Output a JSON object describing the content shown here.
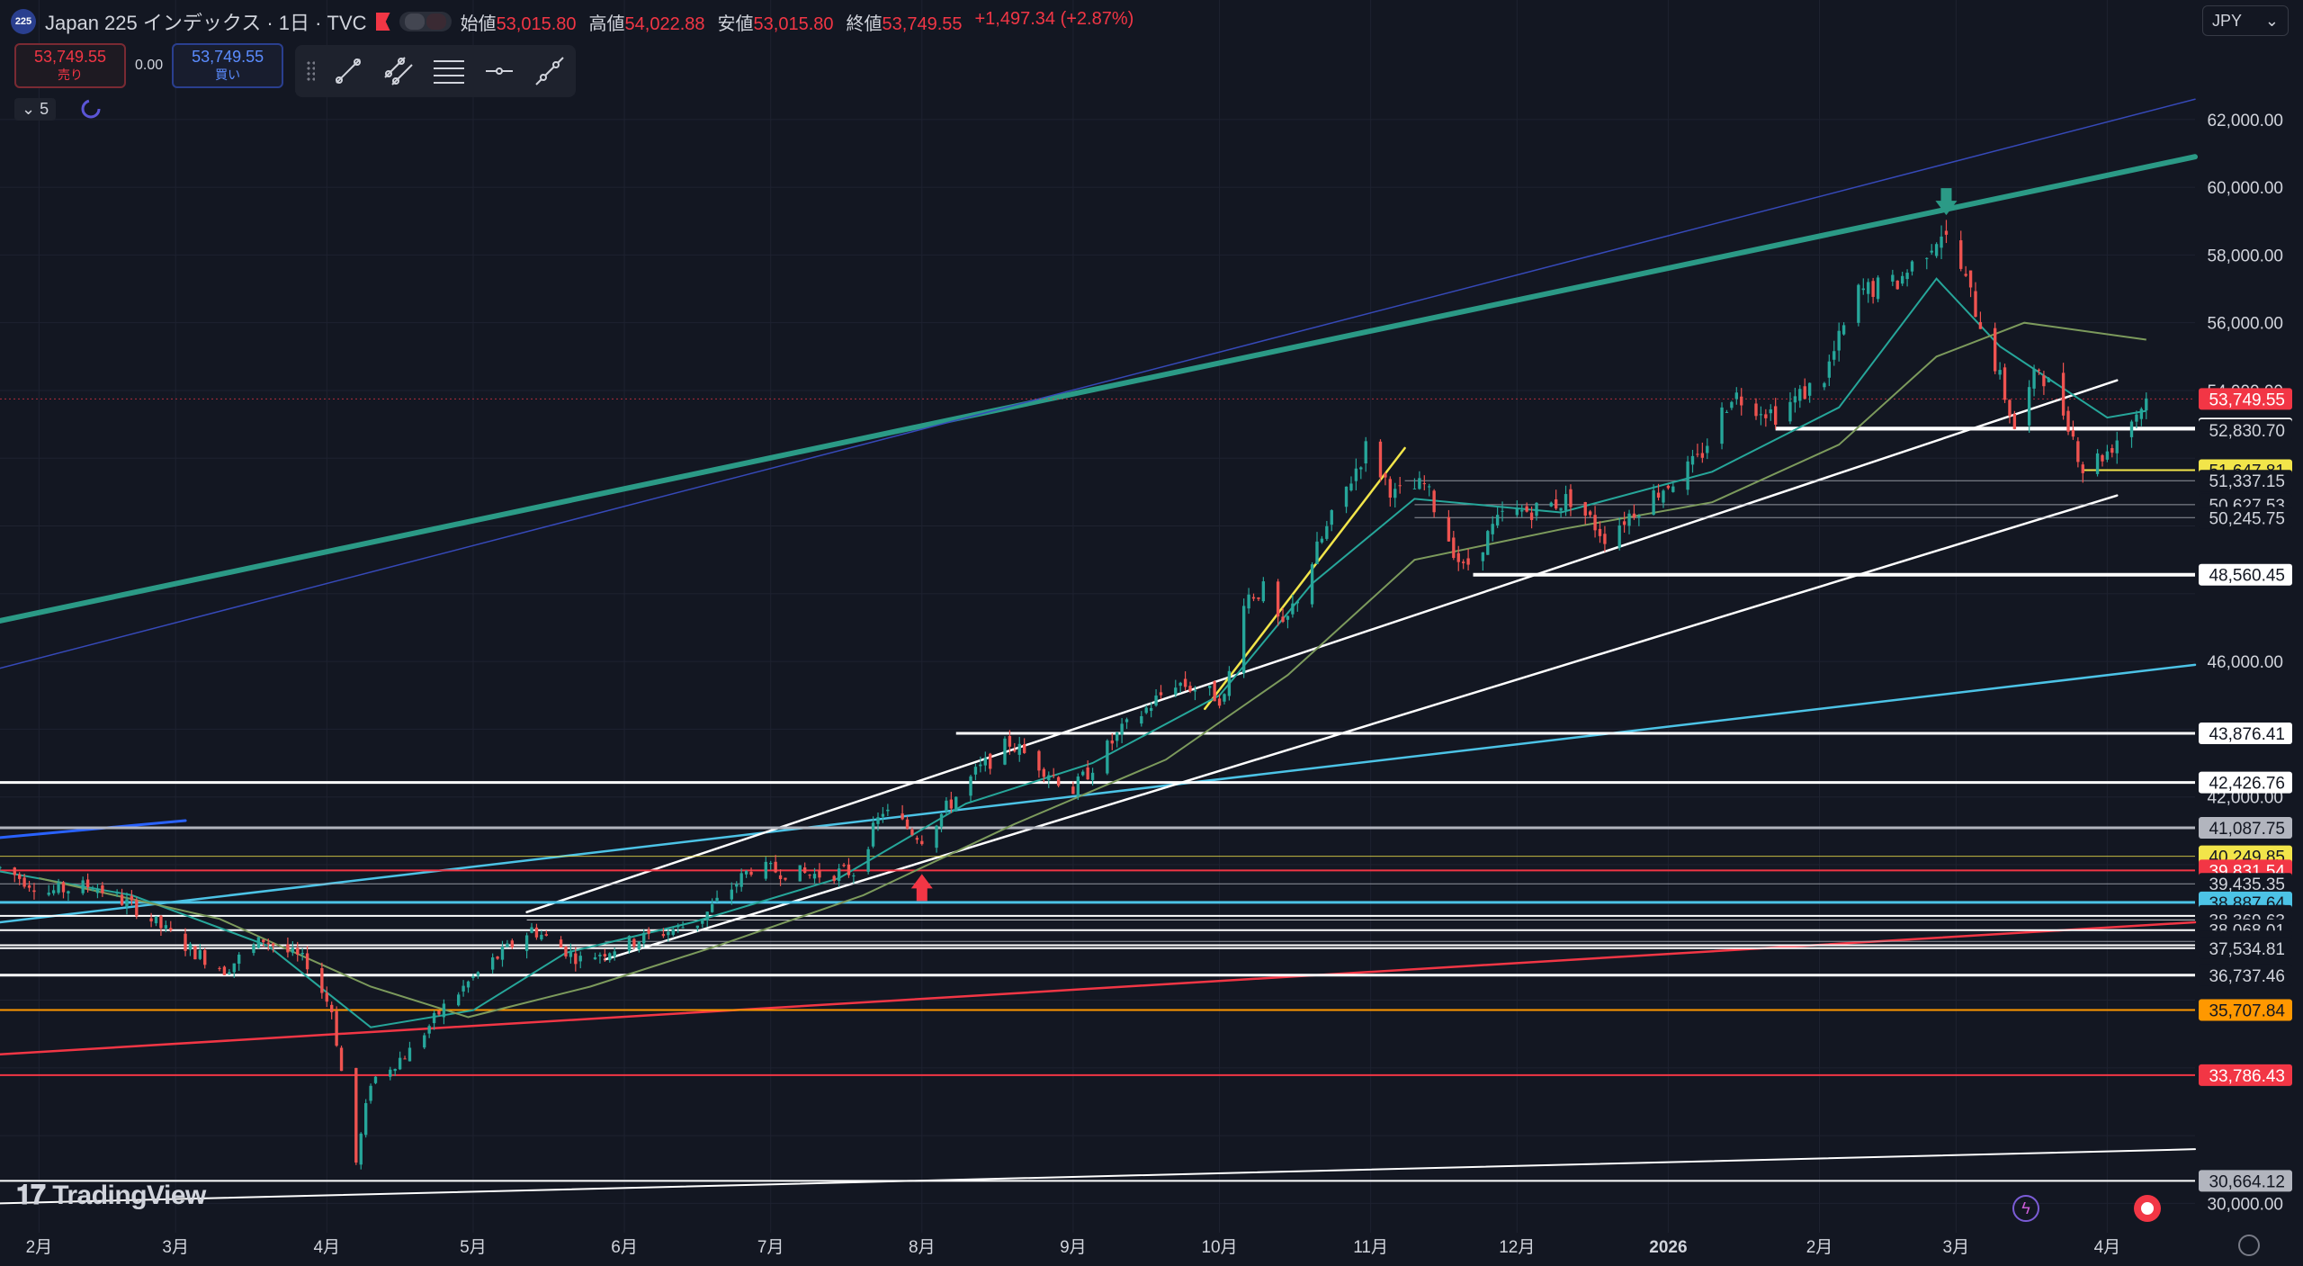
{
  "header": {
    "symbol_badge": "225",
    "title": "Japan 225 インデックス · 1日 · TVC",
    "ohlc": [
      {
        "label": "始値",
        "value": "53,015.80"
      },
      {
        "label": "高値",
        "value": "54,022.88"
      },
      {
        "label": "安値",
        "value": "53,015.80"
      },
      {
        "label": "終値",
        "value": "53,749.55"
      },
      {
        "label": "",
        "value": "+1,497.34 (+2.87%)"
      }
    ]
  },
  "trade": {
    "sell_price": "53,749.55",
    "sell_label": "売り",
    "spread": "0.00",
    "buy_price": "53,749.55",
    "buy_label": "買い"
  },
  "indicator": {
    "count": "5"
  },
  "currency": {
    "selected": "JPY"
  },
  "branding": {
    "logo": "TradingView"
  },
  "colors": {
    "bg": "#131722",
    "up": "#26a69a",
    "down": "#ef5350",
    "grid": "#1e2230",
    "text": "#d1d4dc"
  },
  "chart_data": {
    "type": "candlestick",
    "title": "Japan 225 インデックス · 1日 · TVC",
    "x": {
      "start": "2025-01-24",
      "end": "2026-04-19",
      "ticks": [
        {
          "label": "2月",
          "date": "2025-02-01"
        },
        {
          "label": "3月",
          "date": "2025-03-01"
        },
        {
          "label": "4月",
          "date": "2025-04-01"
        },
        {
          "label": "5月",
          "date": "2025-05-01"
        },
        {
          "label": "6月",
          "date": "2025-06-01"
        },
        {
          "label": "7月",
          "date": "2025-07-01"
        },
        {
          "label": "8月",
          "date": "2025-08-01"
        },
        {
          "label": "9月",
          "date": "2025-09-01"
        },
        {
          "label": "10月",
          "date": "2025-10-01"
        },
        {
          "label": "11月",
          "date": "2025-11-01"
        },
        {
          "label": "12月",
          "date": "2025-12-01"
        },
        {
          "label": "2026",
          "date": "2026-01-01"
        },
        {
          "label": "2月",
          "date": "2026-02-01"
        },
        {
          "label": "3月",
          "date": "2026-03-01"
        },
        {
          "label": "4月",
          "date": "2026-04-01"
        }
      ]
    },
    "y": {
      "min": 29400,
      "max": 64200,
      "ticks": [
        62000,
        60000,
        58000,
        56000,
        54000,
        46000,
        42000,
        30000
      ],
      "tick_labels": [
        "62,000.00",
        "60,000.00",
        "58,000.00",
        "56,000.00",
        "54,000.00",
        "46,000.00",
        "42,000.00",
        "30,000.00"
      ]
    },
    "last_price": {
      "value": 53749.55,
      "label": "53,749.55"
    },
    "price_path": [
      [
        "2025-01-24",
        39900
      ],
      [
        "2025-02-03",
        39200
      ],
      [
        "2025-02-12",
        39400
      ],
      [
        "2025-02-21",
        38700
      ],
      [
        "2025-03-04",
        37500
      ],
      [
        "2025-03-11",
        36900
      ],
      [
        "2025-03-19",
        37800
      ],
      [
        "2025-03-28",
        37100
      ],
      [
        "2025-04-02",
        35700
      ],
      [
        "2025-04-07",
        31200
      ],
      [
        "2025-04-10",
        33600
      ],
      [
        "2025-04-18",
        34500
      ],
      [
        "2025-04-25",
        35800
      ],
      [
        "2025-05-02",
        36800
      ],
      [
        "2025-05-13",
        38100
      ],
      [
        "2025-05-23",
        37200
      ],
      [
        "2025-06-04",
        37800
      ],
      [
        "2025-06-16",
        38300
      ],
      [
        "2025-06-27",
        39900
      ],
      [
        "2025-07-10",
        39700
      ],
      [
        "2025-07-18",
        39800
      ],
      [
        "2025-07-24",
        41600
      ],
      [
        "2025-08-01",
        40800
      ],
      [
        "2025-08-12",
        42700
      ],
      [
        "2025-08-19",
        43600
      ],
      [
        "2025-09-01",
        42200
      ],
      [
        "2025-09-10",
        43800
      ],
      [
        "2025-09-22",
        45400
      ],
      [
        "2025-10-02",
        44900
      ],
      [
        "2025-10-06",
        47900
      ],
      [
        "2025-10-10",
        48100
      ],
      [
        "2025-10-14",
        46900
      ],
      [
        "2025-10-21",
        49300
      ],
      [
        "2025-10-31",
        52300
      ],
      [
        "2025-11-06",
        50900
      ],
      [
        "2025-11-12",
        51200
      ],
      [
        "2025-11-20",
        48700
      ],
      [
        "2025-11-28",
        50300
      ],
      [
        "2025-12-05",
        50500
      ],
      [
        "2025-12-12",
        50800
      ],
      [
        "2025-12-19",
        49700
      ],
      [
        "2025-12-26",
        50600
      ],
      [
        "2026-01-07",
        51900
      ],
      [
        "2026-01-14",
        53900
      ],
      [
        "2026-01-23",
        53300
      ],
      [
        "2026-02-02",
        54400
      ],
      [
        "2026-02-09",
        56900
      ],
      [
        "2026-02-17",
        57200
      ],
      [
        "2026-02-26",
        58700
      ],
      [
        "2026-03-02",
        57600
      ],
      [
        "2026-03-09",
        54800
      ],
      [
        "2026-03-13",
        52900
      ],
      [
        "2026-03-18",
        54700
      ],
      [
        "2026-03-24",
        53100
      ],
      [
        "2026-03-27",
        51700
      ],
      [
        "2026-04-01",
        52200
      ],
      [
        "2026-04-09",
        53749.55
      ]
    ],
    "moving_averages": [
      {
        "color": "#26a69a",
        "path": [
          [
            "2025-01-24",
            39800
          ],
          [
            "2025-02-20",
            39100
          ],
          [
            "2025-03-20",
            37600
          ],
          [
            "2025-04-10",
            35200
          ],
          [
            "2025-05-01",
            35700
          ],
          [
            "2025-05-20",
            37400
          ],
          [
            "2025-06-15",
            38300
          ],
          [
            "2025-07-15",
            39600
          ],
          [
            "2025-08-10",
            41800
          ],
          [
            "2025-09-05",
            43000
          ],
          [
            "2025-10-01",
            45000
          ],
          [
            "2025-10-20",
            48300
          ],
          [
            "2025-11-10",
            50800
          ],
          [
            "2025-12-10",
            50400
          ],
          [
            "2026-01-10",
            51600
          ],
          [
            "2026-02-05",
            53500
          ],
          [
            "2026-02-25",
            57300
          ],
          [
            "2026-03-10",
            55300
          ],
          [
            "2026-04-01",
            53200
          ],
          [
            "2026-04-09",
            53400
          ]
        ]
      },
      {
        "color": "#7c9a5c",
        "path": [
          [
            "2025-02-01",
            39600
          ],
          [
            "2025-03-10",
            38400
          ],
          [
            "2025-04-10",
            36400
          ],
          [
            "2025-04-30",
            35500
          ],
          [
            "2025-05-25",
            36400
          ],
          [
            "2025-06-20",
            37600
          ],
          [
            "2025-07-20",
            39100
          ],
          [
            "2025-08-20",
            41200
          ],
          [
            "2025-09-20",
            43100
          ],
          [
            "2025-10-15",
            45600
          ],
          [
            "2025-11-10",
            49000
          ],
          [
            "2025-12-10",
            49900
          ],
          [
            "2026-01-10",
            50700
          ],
          [
            "2026-02-05",
            52400
          ],
          [
            "2026-02-25",
            55000
          ],
          [
            "2026-03-15",
            56000
          ],
          [
            "2026-04-09",
            55500
          ]
        ]
      }
    ],
    "horizontal_levels": [
      {
        "value": 52876.05,
        "label": "52,876.05",
        "color": "#ffffff",
        "badge_color": "#ffffff",
        "text_color": "#131722",
        "from": "2026-01-23",
        "width": 4
      },
      {
        "value": 52830.7,
        "label": "52,830.70",
        "color": "#ffffff",
        "badge_color": "",
        "text_color": "#d1d4dc",
        "from": "2026-01-23",
        "width": 1
      },
      {
        "value": 51647.81,
        "label": "51,647.81",
        "color": "#f2e54a",
        "badge_color": "#f2e54a",
        "text_color": "#131722",
        "from": "2026-03-27",
        "width": 2
      },
      {
        "value": 51337.15,
        "label": "51,337.15",
        "color": "#b2b5be",
        "badge_color": "",
        "text_color": "#d1d4dc",
        "from": "2025-11-08",
        "width": 1
      },
      {
        "value": 50627.53,
        "label": "50,627.53",
        "color": "#b2b5be",
        "badge_color": "",
        "text_color": "#d1d4dc",
        "from": "2025-11-10",
        "width": 1
      },
      {
        "value": 50245.75,
        "label": "50,245.75",
        "color": "#b2b5be",
        "badge_color": "",
        "text_color": "#d1d4dc",
        "from": "2025-11-10",
        "width": 1
      },
      {
        "value": 48560.45,
        "label": "48,560.45",
        "color": "#ffffff",
        "badge_color": "#ffffff",
        "text_color": "#131722",
        "from": "2025-11-22",
        "width": 4
      },
      {
        "value": 43876.41,
        "label": "43,876.41",
        "color": "#ffffff",
        "badge_color": "#ffffff",
        "text_color": "#131722",
        "from": "2025-08-08",
        "width": 3
      },
      {
        "value": 42426.76,
        "label": "42,426.76",
        "color": "#ffffff",
        "badge_color": "#ffffff",
        "text_color": "#131722",
        "from": "2025-01-24",
        "width": 3
      },
      {
        "value": 41087.75,
        "label": "41,087.75",
        "color": "#b2b5be",
        "badge_color": "#b2b5be",
        "text_color": "#131722",
        "from": "2025-01-24",
        "width": 3
      },
      {
        "value": 40249.85,
        "label": "40,249.85",
        "color": "#f2e54a",
        "badge_color": "#f2e54a",
        "text_color": "#131722",
        "from": "2025-01-24",
        "width": 1
      },
      {
        "value": 39831.54,
        "label": "39,831.54",
        "color": "#f23645",
        "badge_color": "#f23645",
        "text_color": "#ffffff",
        "from": "2025-01-24",
        "width": 2
      },
      {
        "value": 39435.35,
        "label": "39,435.35",
        "color": "#b2b5be",
        "badge_color": "",
        "text_color": "#d1d4dc",
        "from": "2025-01-24",
        "width": 1
      },
      {
        "value": 38887.64,
        "label": "38,887.64",
        "color": "#4cc3e6",
        "badge_color": "#4cc3e6",
        "text_color": "#131722",
        "from": "2025-01-24",
        "width": 3
      },
      {
        "value": 38489.84,
        "label": "38,489.84",
        "color": "#ffffff",
        "badge_color": "",
        "text_color": "#d1d4dc",
        "from": "2025-01-24",
        "width": 2
      },
      {
        "value": 38369.63,
        "label": "38,369.63",
        "color": "#ffffff",
        "badge_color": "",
        "text_color": "#d1d4dc",
        "from": "2025-05-12",
        "width": 1
      },
      {
        "value": 38068.01,
        "label": "38,068.01",
        "color": "#ffffff",
        "badge_color": "",
        "text_color": "#d1d4dc",
        "from": "2025-01-24",
        "width": 2
      },
      {
        "value": 37736.04,
        "label": "37,736.04",
        "color": "#b2b5be",
        "badge_color": "",
        "text_color": "#d1d4dc",
        "from": "2025-05-28",
        "width": 1
      },
      {
        "value": 37621.77,
        "label": "37,621.77",
        "color": "#ffffff",
        "badge_color": "",
        "text_color": "#d1d4dc",
        "from": "2025-01-24",
        "width": 2
      },
      {
        "value": 37534.81,
        "label": "37,534.81",
        "color": "#ffffff",
        "badge_color": "",
        "text_color": "#d1d4dc",
        "from": "2025-01-24",
        "width": 2
      },
      {
        "value": 36737.46,
        "label": "36,737.46",
        "color": "#ffffff",
        "badge_color": "",
        "text_color": "#d1d4dc",
        "from": "2025-01-24",
        "width": 3
      },
      {
        "value": 35707.84,
        "label": "35,707.84",
        "color": "#ff9800",
        "badge_color": "#ff9800",
        "text_color": "#131722",
        "from": "2025-01-24",
        "width": 2
      },
      {
        "value": 33786.43,
        "label": "33,786.43",
        "color": "#f23645",
        "badge_color": "#f23645",
        "text_color": "#ffffff",
        "from": "2025-01-24",
        "width": 2
      },
      {
        "value": 30664.12,
        "label": "30,664.12",
        "color": "#ffffff",
        "badge_color": "#b2b5be",
        "text_color": "#131722",
        "from": "2025-01-24",
        "width": 2
      }
    ],
    "trendlines": [
      {
        "color": "#2b9a86",
        "width": 6,
        "points": [
          [
            "2025-01-24",
            47200
          ],
          [
            "2026-04-19",
            60900
          ]
        ]
      },
      {
        "color": "#3649b8",
        "width": 1.5,
        "points": [
          [
            "2025-01-24",
            45800
          ],
          [
            "2026-04-19",
            62600
          ]
        ]
      },
      {
        "color": "#4cc3e6",
        "width": 2.5,
        "points": [
          [
            "2025-01-24",
            38300
          ],
          [
            "2026-04-19",
            45900
          ]
        ]
      },
      {
        "color": "#f23645",
        "width": 2.5,
        "points": [
          [
            "2025-01-24",
            34400
          ],
          [
            "2026-04-19",
            38300
          ]
        ]
      },
      {
        "color": "#ffffff",
        "width": 2,
        "points": [
          [
            "2025-01-24",
            30000
          ],
          [
            "2026-04-19",
            31600
          ]
        ]
      },
      {
        "color": "#ffffff",
        "width": 2.5,
        "points": [
          [
            "2025-05-12",
            38600
          ],
          [
            "2026-04-03",
            54300
          ]
        ]
      },
      {
        "color": "#ffffff",
        "width": 2.5,
        "points": [
          [
            "2025-05-28",
            37200
          ],
          [
            "2026-04-03",
            50900
          ]
        ]
      },
      {
        "color": "#f2e54a",
        "width": 2.5,
        "points": [
          [
            "2025-09-28",
            44600
          ],
          [
            "2025-11-08",
            52300
          ]
        ]
      },
      {
        "color": "#2962ff",
        "width": 3,
        "points": [
          [
            "2025-01-24",
            40800
          ],
          [
            "2025-03-03",
            41300
          ]
        ]
      }
    ],
    "markers": [
      {
        "date": "2025-08-01",
        "value": 39300,
        "direction": "up",
        "color": "#f23645"
      },
      {
        "date": "2026-02-27",
        "value": 59600,
        "direction": "down",
        "color": "#2b9a86"
      }
    ]
  }
}
